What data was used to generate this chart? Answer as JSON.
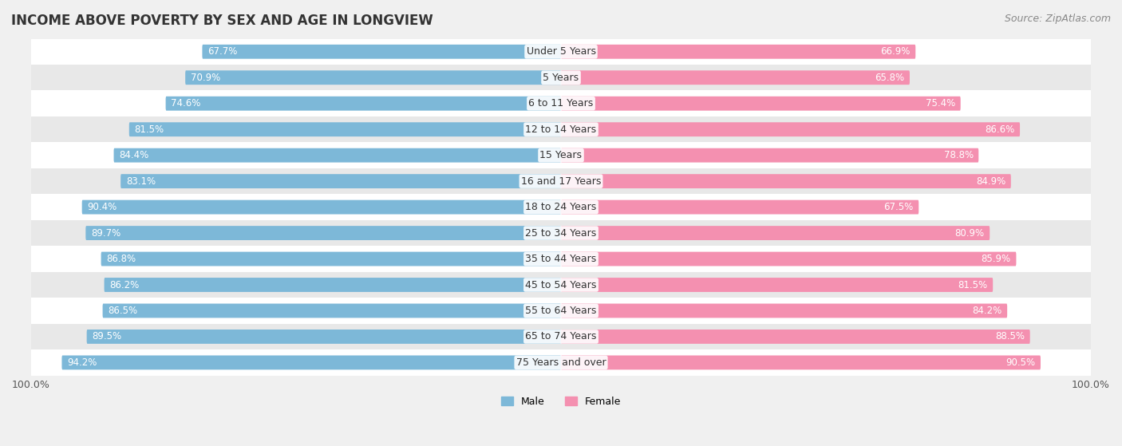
{
  "title": "INCOME ABOVE POVERTY BY SEX AND AGE IN LONGVIEW",
  "source": "Source: ZipAtlas.com",
  "categories": [
    "Under 5 Years",
    "5 Years",
    "6 to 11 Years",
    "12 to 14 Years",
    "15 Years",
    "16 and 17 Years",
    "18 to 24 Years",
    "25 to 34 Years",
    "35 to 44 Years",
    "45 to 54 Years",
    "55 to 64 Years",
    "65 to 74 Years",
    "75 Years and over"
  ],
  "male_values": [
    67.7,
    70.9,
    74.6,
    81.5,
    84.4,
    83.1,
    90.4,
    89.7,
    86.8,
    86.2,
    86.5,
    89.5,
    94.2
  ],
  "female_values": [
    66.9,
    65.8,
    75.4,
    86.6,
    78.8,
    84.9,
    67.5,
    80.9,
    85.9,
    81.5,
    84.2,
    88.5,
    90.5
  ],
  "male_color": "#7db8d8",
  "female_color": "#f490b0",
  "male_label": "Male",
  "female_label": "Female",
  "bar_height": 0.55,
  "background_color": "#f0f0f0",
  "row_color_odd": "#ffffff",
  "row_color_even": "#e8e8e8",
  "title_fontsize": 12,
  "label_fontsize": 9,
  "tick_fontsize": 9,
  "source_fontsize": 9,
  "value_fontsize": 8.5
}
